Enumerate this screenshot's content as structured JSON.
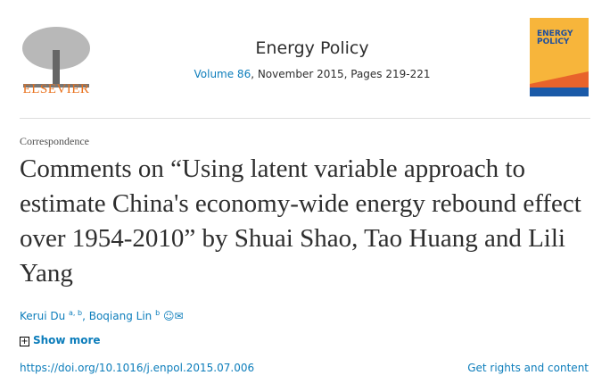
{
  "publisher": {
    "name": "ELSEVIER"
  },
  "journal": {
    "title": "Energy Policy",
    "volume_link": "Volume 86",
    "issue_rest": ", November 2015, Pages 219-221",
    "cover_title": "ENERGY POLICY",
    "colors": {
      "orange": "#e9711c",
      "link": "#0c7dbb"
    }
  },
  "article": {
    "type": "Correspondence",
    "title": "Comments on “Using latent variable approach to estimate China's economy-wide energy rebound effect over 1954-2010” by Shuai Shao, Tao Huang and Lili Yang",
    "authors": [
      {
        "name": "Kerui Du",
        "sup": "a, b"
      },
      {
        "name": "Boqiang Lin",
        "sup": "b"
      }
    ],
    "show_more": "Show more",
    "doi": "https://doi.org/10.1016/j.enpol.2015.07.006",
    "rights": "Get rights and content"
  }
}
